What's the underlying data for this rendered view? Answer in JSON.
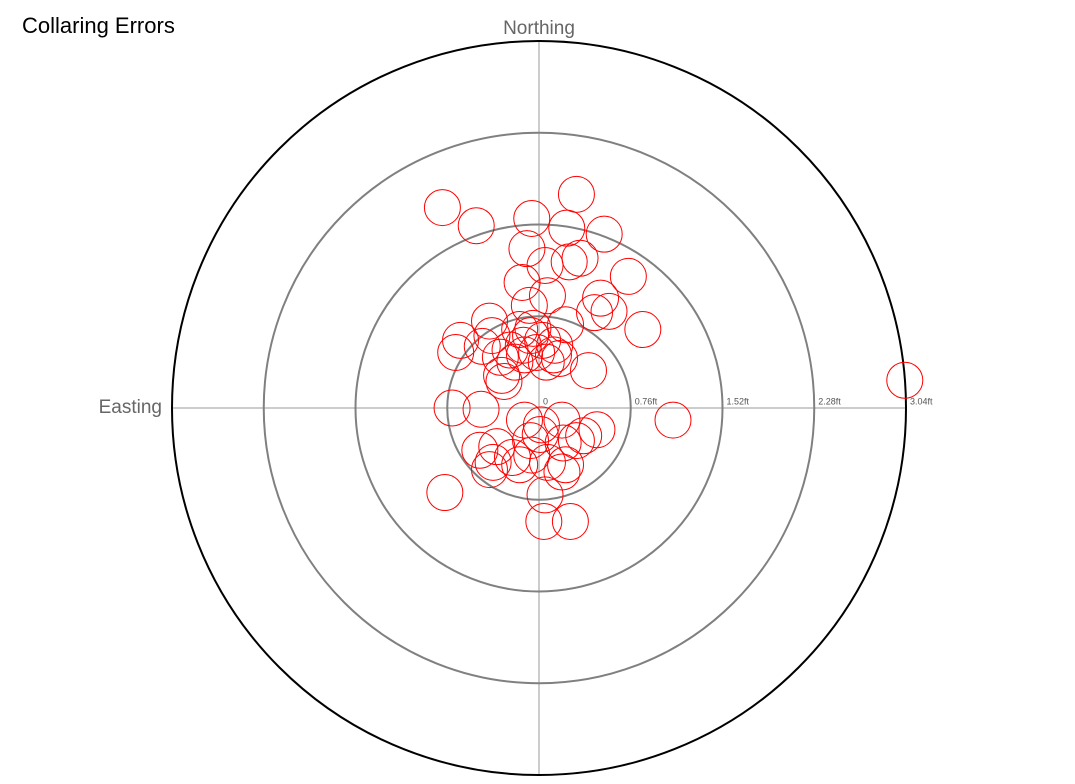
{
  "chart_data": {
    "type": "scatter",
    "title": "Collaring Errors",
    "y_label": "Northing",
    "x_label": "Easting",
    "rlim": [
      0,
      3.04
    ],
    "rticks": [
      0,
      {
        "value": 0.76,
        "label": "0.76ft"
      },
      {
        "value": 1.52,
        "label": "1.52ft"
      },
      {
        "value": 2.28,
        "label": "2.28ft"
      },
      {
        "value": 3.04,
        "label": "3.04ft"
      }
    ],
    "color": "#ff0000",
    "x": [
      -0.8,
      -0.52,
      0.31,
      -0.06,
      0.23,
      0.54,
      -0.1,
      0.25,
      0.34,
      0.05,
      0.74,
      -0.14,
      0.07,
      0.51,
      -0.08,
      0.46,
      0.58,
      0.86,
      -0.41,
      -0.65,
      -0.69,
      -0.39,
      -0.16,
      -0.07,
      0.22,
      0.03,
      -0.13,
      -0.24,
      -0.02,
      0.12,
      -0.32,
      -0.2,
      0.06,
      0.17,
      0.41,
      -0.29,
      -0.72,
      -0.48,
      1.11,
      3.03,
      -0.12,
      0.02,
      0.19,
      0.48,
      0.37,
      0.01,
      -0.07,
      0.2,
      0.31,
      -0.49,
      -0.35,
      -0.22,
      -0.06,
      0.07,
      0.22,
      0.19,
      -0.41,
      -0.38,
      -0.16,
      -0.78,
      0.05,
      0.04,
      0.26,
      -0.47,
      -0.05,
      0.13,
      -0.31,
      -0.12
    ],
    "y": [
      1.66,
      1.51,
      1.77,
      1.57,
      1.49,
      1.44,
      1.32,
      1.21,
      1.24,
      1.18,
      1.09,
      1.04,
      0.93,
      0.91,
      0.85,
      0.79,
      0.8,
      0.65,
      0.72,
      0.56,
      0.46,
      0.6,
      0.65,
      0.6,
      0.69,
      0.56,
      0.52,
      0.48,
      0.46,
      0.44,
      0.42,
      0.38,
      0.38,
      0.41,
      0.31,
      0.22,
      0.0,
      -0.01,
      -0.1,
      0.23,
      -0.1,
      -0.14,
      -0.1,
      -0.18,
      -0.23,
      -0.22,
      -0.27,
      -0.29,
      -0.27,
      -0.35,
      -0.32,
      -0.41,
      -0.39,
      -0.45,
      -0.47,
      -0.53,
      -0.51,
      -0.45,
      -0.47,
      -0.7,
      -0.72,
      -0.94,
      -0.94,
      0.51,
      0.66,
      0.52,
      0.27,
      0.44
    ]
  }
}
